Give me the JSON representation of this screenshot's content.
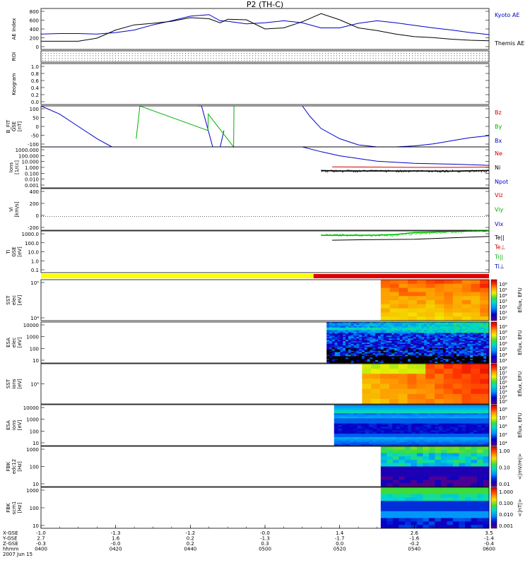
{
  "title": "P2 (TH-C)",
  "panels": [
    {
      "id": "ae",
      "ylabel_lines": [
        "AE Index"
      ],
      "yticks": [
        "800",
        "600",
        "400",
        "200",
        "0"
      ],
      "legend": [
        {
          "text": "Kyoto AE",
          "color": "#0000c8"
        },
        {
          "text": "Themis AE",
          "color": "#000000"
        }
      ]
    },
    {
      "id": "roi",
      "ylabel_lines": [
        "ROI"
      ],
      "yticks": [],
      "legend": []
    },
    {
      "id": "keogram",
      "ylabel_lines": [
        "Keogram"
      ],
      "yticks": [
        "1.0",
        "0.8",
        "0.6",
        "0.4",
        "0.2",
        "0.0"
      ],
      "legend": []
    },
    {
      "id": "bfit",
      "ylabel_lines": [
        "B_FIT",
        "GSE",
        "[nT]"
      ],
      "yticks": [
        "100",
        "50",
        "0",
        "-50",
        "-100"
      ],
      "legend": [
        {
          "text": "Bz",
          "color": "#d00000"
        },
        {
          "text": "By",
          "color": "#00b000"
        },
        {
          "text": "Bx",
          "color": "#0000c8"
        }
      ]
    },
    {
      "id": "density",
      "ylabel_lines": [
        "Ions",
        "[1/cc]"
      ],
      "yticks": [
        "1000.000",
        "100.000",
        "10.000",
        "1.000",
        "0.100",
        "0.010",
        "0.001"
      ],
      "legend": [
        {
          "text": "Ne",
          "color": "#d00000"
        },
        {
          "text": "Ni",
          "color": "#000000"
        },
        {
          "text": "Npot",
          "color": "#0000c8"
        }
      ]
    },
    {
      "id": "velocity",
      "ylabel_lines": [
        "Vi",
        "[km/s]"
      ],
      "yticks": [
        "400",
        "200",
        "0",
        "-200"
      ],
      "legend": [
        {
          "text": "Viz",
          "color": "#d00000"
        },
        {
          "text": "Viy",
          "color": "#00b000"
        },
        {
          "text": "Vix",
          "color": "#0000c8"
        }
      ]
    },
    {
      "id": "temp",
      "ylabel_lines": [
        "Ti",
        "GSE",
        "[eV]"
      ],
      "yticks": [
        "1000.0",
        "100.0",
        "10.0",
        "1.0",
        "0.1"
      ],
      "legend": [
        {
          "text": "Te||",
          "color": "#000000"
        },
        {
          "text": "Te⊥",
          "color": "#d00000"
        },
        {
          "text": "Ti||",
          "color": "#00b000"
        },
        {
          "text": "Ti⊥",
          "color": "#0000c8"
        }
      ]
    },
    {
      "id": "mode",
      "ylabel_lines": [],
      "yticks": [],
      "legend": []
    },
    {
      "id": "sst_e",
      "ylabel_lines": [
        "SST",
        "elec",
        "[eV]"
      ],
      "yticks": [
        "10⁵",
        "10⁴"
      ],
      "legend": [],
      "cbar": {
        "ticks": [
          "10⁶",
          "10⁵",
          "10⁴",
          "10³",
          "10²",
          "10¹",
          "10⁰"
        ],
        "label": "Eflux, EFU",
        "kind": "rainbow"
      }
    },
    {
      "id": "esa_e",
      "ylabel_lines": [
        "ESA",
        "elec",
        "[eV]"
      ],
      "yticks": [
        "10000",
        "1000",
        "100",
        "10"
      ],
      "legend": [],
      "cbar": {
        "ticks": [
          "10⁹",
          "10⁸",
          "10⁷",
          "10⁶",
          "10⁵",
          "10⁴",
          "10³"
        ],
        "label": "Eflux, EFU",
        "kind": "rainbow"
      }
    },
    {
      "id": "sst_i",
      "ylabel_lines": [
        "SST",
        "ions",
        "[eV]"
      ],
      "yticks": [
        "10⁵"
      ],
      "legend": [],
      "cbar": {
        "ticks": [
          "10⁸",
          "10⁷",
          "10⁶",
          "10⁵",
          "10⁴",
          "10³",
          "10²",
          "10⁰"
        ],
        "label": "Eflux, EFU",
        "kind": "rainbow"
      }
    },
    {
      "id": "esa_i",
      "ylabel_lines": [
        "ESA",
        "ions",
        "[eV]"
      ],
      "yticks": [
        "10000",
        "1000",
        "100",
        "10"
      ],
      "legend": [],
      "cbar": {
        "ticks": [
          "10⁸",
          "10⁷",
          "10⁶",
          "10⁵",
          "10⁴"
        ],
        "label": "Eflux, EFU",
        "kind": "rainbow"
      }
    },
    {
      "id": "fbk_e",
      "ylabel_lines": [
        "FBK",
        "edc12",
        "[Hz]"
      ],
      "yticks": [
        "1000",
        "100",
        "10"
      ],
      "legend": [],
      "cbar": {
        "ticks": [
          "1.00",
          "0.10",
          "0.01"
        ],
        "label": "<|mV/m|>",
        "kind": "fbk"
      }
    },
    {
      "id": "fbk_b",
      "ylabel_lines": [
        "FBK",
        "scm1",
        "[Hz]"
      ],
      "yticks": [
        "1000",
        "100",
        "10"
      ],
      "legend": [],
      "cbar": {
        "ticks": [
          "1.000",
          "0.100",
          "0.010",
          "0.001"
        ],
        "label": "<|nT|>",
        "kind": "fbk"
      }
    }
  ],
  "xaxis": {
    "row_labels": [
      "X-GSE",
      "Y-GSE",
      "Z-GSE",
      "hhmm",
      "2007 Jun 15"
    ],
    "columns": [
      [
        "-1.0",
        "2.7",
        "-0.3",
        "0400"
      ],
      [
        "-1.3",
        "1.6",
        "-0.0",
        "0420"
      ],
      [
        "-1.2",
        "0.2",
        "0.2",
        "0440"
      ],
      [
        "-0.0",
        "-1.3",
        "0.3",
        "0500"
      ],
      [
        "1.4",
        "-1.7",
        "0.0",
        "0520"
      ],
      [
        "2.6",
        "-1.6",
        "-0.2",
        "0540"
      ],
      [
        "3.5",
        "-1.4",
        "-0.4",
        "0600"
      ]
    ]
  },
  "chart_data": {
    "type": "line",
    "title": "P2 (TH-C)",
    "x_range_hhmm": [
      "0400",
      "0600"
    ],
    "x_tick_labels": [
      "0400",
      "0420",
      "0440",
      "0500",
      "0520",
      "0540",
      "0600"
    ],
    "series": [
      {
        "name": "Kyoto AE",
        "panel": "ae",
        "x": [
          0,
          5,
          10,
          15,
          20,
          25,
          30,
          35,
          40,
          45,
          48,
          50,
          55,
          60,
          65,
          70,
          75,
          80,
          85,
          90,
          95,
          100,
          105,
          110,
          115,
          120
        ],
        "values": [
          300,
          310,
          310,
          300,
          330,
          380,
          480,
          560,
          650,
          680,
          560,
          550,
          500,
          520,
          560,
          520,
          420,
          420,
          510,
          560,
          520,
          470,
          420,
          380,
          330,
          290
        ]
      },
      {
        "name": "Themis AE",
        "panel": "ae",
        "x": [
          0,
          5,
          10,
          15,
          20,
          25,
          30,
          35,
          40,
          45,
          48,
          50,
          55,
          60,
          65,
          70,
          75,
          80,
          85,
          90,
          95,
          100,
          105,
          110,
          115,
          120
        ],
        "values": [
          160,
          160,
          160,
          220,
          380,
          480,
          510,
          550,
          620,
          600,
          520,
          590,
          580,
          400,
          420,
          540,
          700,
          580,
          420,
          370,
          300,
          250,
          230,
          200,
          180,
          170
        ]
      },
      {
        "name": "Bx",
        "panel": "bfit",
        "x": [
          0,
          5,
          10,
          15,
          19,
          20,
          40,
          42,
          43,
          46,
          47,
          48,
          49,
          50,
          53,
          54,
          55,
          55.5,
          70,
          72,
          75,
          80,
          85,
          90,
          95,
          100,
          105,
          110,
          115,
          120
        ],
        "values": [
          100,
          60,
          0,
          -60,
          -100,
          null,
          null,
          100,
          100,
          -100,
          null,
          -100,
          -20,
          null,
          100,
          null,
          null,
          null,
          100,
          50,
          -10,
          -60,
          -90,
          -100,
          -100,
          -95,
          -85,
          -70,
          -55,
          -45
        ]
      },
      {
        "name": "By",
        "panel": "bfit",
        "x": [
          25.5,
          26.5,
          44.7,
          44.8,
          51.6,
          51.7
        ],
        "values": [
          -60,
          100,
          -20,
          60,
          -100,
          100
        ]
      },
      {
        "name": "Npot",
        "panel": "density",
        "x": [
          0,
          60,
          70,
          75,
          80,
          90,
          100,
          110,
          120
        ],
        "values": [
          1000,
          1000,
          1000,
          200,
          50,
          8,
          4,
          3,
          2
        ]
      },
      {
        "name": "Ni",
        "panel": "density",
        "x": [
          75,
          80,
          90,
          100,
          110,
          120
        ],
        "values": [
          0.35,
          0.3,
          0.3,
          0.3,
          0.28,
          0.35
        ]
      },
      {
        "name": "Ne",
        "panel": "density",
        "x": [
          78,
          90,
          100,
          110,
          120
        ],
        "values": [
          1.2,
          1.1,
          1.0,
          1.0,
          1.1
        ]
      },
      {
        "name": "Ti||",
        "panel": "temp",
        "x": [
          75,
          80,
          90,
          95,
          100,
          110,
          120
        ],
        "values": [
          380,
          380,
          400,
          450,
          700,
          900,
          1100
        ]
      },
      {
        "name": "Te||",
        "panel": "temp",
        "x": [
          78,
          90,
          100,
          110,
          120
        ],
        "values": [
          130,
          150,
          160,
          220,
          300
        ]
      }
    ],
    "ylim": {
      "ae": [
        0,
        800
      ],
      "bfit": [
        -100,
        100
      ],
      "density": [
        0.001,
        1000
      ],
      "velocity": [
        -200,
        400
      ],
      "temp": [
        0.1,
        1000
      ]
    },
    "mode_bar": {
      "segments": [
        {
          "x0": 0,
          "x1": 73,
          "color": "#ffff00"
        },
        {
          "x0": 73,
          "x1": 120,
          "color": "#dd0000"
        }
      ]
    }
  }
}
